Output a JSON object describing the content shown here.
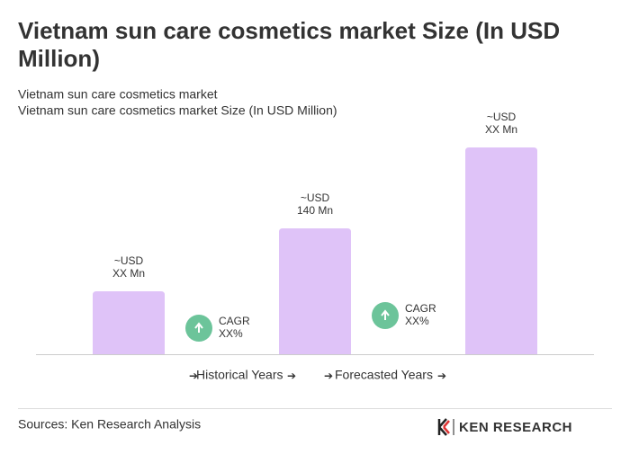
{
  "chart_data": {
    "type": "bar",
    "title": "Vietnam sun care cosmetics market Size (In USD Million)",
    "subtitle": [
      "Vietnam sun care cosmetics market",
      "Vietnam sun care cosmetics market Size (In USD Million)"
    ],
    "categories": [
      null,
      null,
      null
    ],
    "values": [
      70,
      140,
      230
    ],
    "value_labels": [
      [
        "~USD",
        "XX Mn"
      ],
      [
        "~USD",
        "140 Mn"
      ],
      [
        "~USD",
        "XX Mn"
      ]
    ],
    "color": "#dfc3f8",
    "annotations": [
      [
        "CAGR",
        "XX%"
      ],
      [
        "CAGR",
        "XX%"
      ]
    ],
    "periods": [
      "Historical Years",
      "Forecasted Years"
    ],
    "source": "Sources: Ken Research Analysis",
    "brand": "KEN RESEARCH"
  }
}
